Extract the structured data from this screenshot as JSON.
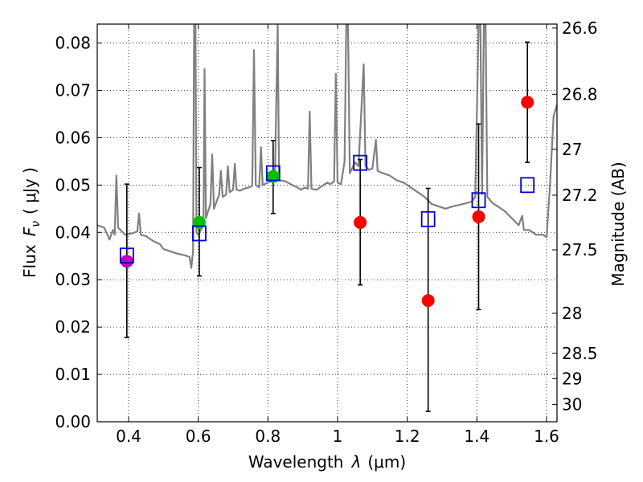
{
  "chart_data": {
    "type": "scatter",
    "xlabel_prefix": "Wavelength",
    "xlabel_symbol": "λ",
    "xlabel_unit": "(μm)",
    "ylabel_prefix": "Flux",
    "ylabel_symbol": "F",
    "ylabel_subscript": "ν",
    "ylabel_unit": "( μJy )",
    "y2label": "Magnitude (AB)",
    "xlim": [
      0.31,
      1.63
    ],
    "ylim": [
      0.0,
      0.084
    ],
    "grid": true,
    "xticks": [
      {
        "value": 0.4,
        "label": "0.4"
      },
      {
        "value": 0.6,
        "label": "0.6"
      },
      {
        "value": 0.8,
        "label": "0.8"
      },
      {
        "value": 1.0,
        "label": "1"
      },
      {
        "value": 1.2,
        "label": "1.2"
      },
      {
        "value": 1.4,
        "label": "1.4"
      },
      {
        "value": 1.6,
        "label": "1.6"
      }
    ],
    "yticks": [
      {
        "value": 0.0,
        "label": "0.00"
      },
      {
        "value": 0.01,
        "label": "0.01"
      },
      {
        "value": 0.02,
        "label": "0.02"
      },
      {
        "value": 0.03,
        "label": "0.03"
      },
      {
        "value": 0.04,
        "label": "0.04"
      },
      {
        "value": 0.05,
        "label": "0.05"
      },
      {
        "value": 0.06,
        "label": "0.06"
      },
      {
        "value": 0.07,
        "label": "0.07"
      },
      {
        "value": 0.08,
        "label": "0.08"
      }
    ],
    "y2ticks": [
      {
        "mag": 26.6,
        "label": "26.6"
      },
      {
        "mag": 26.8,
        "label": "26.8"
      },
      {
        "mag": 27.0,
        "label": "27"
      },
      {
        "mag": 27.2,
        "label": "27.2"
      },
      {
        "mag": 27.5,
        "label": "27.5"
      },
      {
        "mag": 28.0,
        "label": "28"
      },
      {
        "mag": 28.5,
        "label": "28.5"
      },
      {
        "mag": 29.0,
        "label": "29"
      },
      {
        "mag": 30.0,
        "label": "30"
      }
    ],
    "observed_points": [
      {
        "x": 0.395,
        "y": 0.0339,
        "yerr_low": 0.0178,
        "yerr_high": 0.0502,
        "color": "#bf00bf"
      },
      {
        "x": 0.603,
        "y": 0.0421,
        "yerr_low": 0.0308,
        "yerr_high": 0.0537,
        "color": "#00bf00"
      },
      {
        "x": 0.815,
        "y": 0.0518,
        "yerr_low": 0.044,
        "yerr_high": 0.0594,
        "color": "#00bf00"
      },
      {
        "x": 1.065,
        "y": 0.0421,
        "yerr_low": 0.0289,
        "yerr_high": 0.0554,
        "color": "#ff0000"
      },
      {
        "x": 1.26,
        "y": 0.0256,
        "yerr_low": 0.0022,
        "yerr_high": 0.0493,
        "color": "#ff0000"
      },
      {
        "x": 1.405,
        "y": 0.0433,
        "yerr_low": 0.0237,
        "yerr_high": 0.0629,
        "color": "#ff0000"
      },
      {
        "x": 1.545,
        "y": 0.0675,
        "yerr_low": 0.0548,
        "yerr_high": 0.0802,
        "color": "#ff0000"
      }
    ],
    "model_points": [
      {
        "x": 0.395,
        "y": 0.0351
      },
      {
        "x": 0.603,
        "y": 0.0398
      },
      {
        "x": 0.815,
        "y": 0.0525
      },
      {
        "x": 1.065,
        "y": 0.0547
      },
      {
        "x": 1.26,
        "y": 0.0428
      },
      {
        "x": 1.405,
        "y": 0.0468
      },
      {
        "x": 1.545,
        "y": 0.05
      }
    ],
    "sed_spectrum": [
      [
        0.31,
        0.0415
      ],
      [
        0.33,
        0.041
      ],
      [
        0.345,
        0.0385
      ],
      [
        0.355,
        0.0405
      ],
      [
        0.36,
        0.0395
      ],
      [
        0.365,
        0.052
      ],
      [
        0.37,
        0.041
      ],
      [
        0.39,
        0.0395
      ],
      [
        0.41,
        0.0398
      ],
      [
        0.425,
        0.0402
      ],
      [
        0.43,
        0.044
      ],
      [
        0.435,
        0.0395
      ],
      [
        0.45,
        0.0392
      ],
      [
        0.47,
        0.0382
      ],
      [
        0.49,
        0.0375
      ],
      [
        0.5,
        0.0365
      ],
      [
        0.52,
        0.036
      ],
      [
        0.54,
        0.0355
      ],
      [
        0.56,
        0.0352
      ],
      [
        0.575,
        0.0348
      ],
      [
        0.58,
        0.0325
      ],
      [
        0.585,
        0.036
      ],
      [
        0.588,
        0.084
      ],
      [
        0.592,
        0.084
      ],
      [
        0.595,
        0.04
      ],
      [
        0.6,
        0.0395
      ],
      [
        0.615,
        0.0415
      ],
      [
        0.618,
        0.0745
      ],
      [
        0.622,
        0.043
      ],
      [
        0.635,
        0.046
      ],
      [
        0.64,
        0.0565
      ],
      [
        0.645,
        0.045
      ],
      [
        0.66,
        0.048
      ],
      [
        0.665,
        0.053
      ],
      [
        0.67,
        0.0475
      ],
      [
        0.68,
        0.048
      ],
      [
        0.685,
        0.054
      ],
      [
        0.69,
        0.0485
      ],
      [
        0.7,
        0.049
      ],
      [
        0.705,
        0.0545
      ],
      [
        0.71,
        0.049
      ],
      [
        0.72,
        0.0488
      ],
      [
        0.73,
        0.0492
      ],
      [
        0.745,
        0.0495
      ],
      [
        0.755,
        0.0498
      ],
      [
        0.76,
        0.0785
      ],
      [
        0.765,
        0.05
      ],
      [
        0.775,
        0.0495
      ],
      [
        0.78,
        0.058
      ],
      [
        0.785,
        0.05
      ],
      [
        0.8,
        0.0505
      ],
      [
        0.81,
        0.051
      ],
      [
        0.815,
        0.0525
      ],
      [
        0.82,
        0.051
      ],
      [
        0.828,
        0.084
      ],
      [
        0.832,
        0.051
      ],
      [
        0.85,
        0.0508
      ],
      [
        0.865,
        0.0502
      ],
      [
        0.875,
        0.0498
      ],
      [
        0.885,
        0.0495
      ],
      [
        0.895,
        0.049
      ],
      [
        0.905,
        0.0495
      ],
      [
        0.915,
        0.0492
      ],
      [
        0.92,
        0.0655
      ],
      [
        0.925,
        0.0492
      ],
      [
        0.94,
        0.049
      ],
      [
        0.955,
        0.0498
      ],
      [
        0.97,
        0.0505
      ],
      [
        0.98,
        0.0502
      ],
      [
        0.99,
        0.0508
      ],
      [
        0.995,
        0.0735
      ],
      [
        1.0,
        0.0505
      ],
      [
        1.01,
        0.0502
      ],
      [
        1.02,
        0.055
      ],
      [
        1.025,
        0.084
      ],
      [
        1.03,
        0.084
      ],
      [
        1.035,
        0.0525
      ],
      [
        1.05,
        0.0548
      ],
      [
        1.06,
        0.054
      ],
      [
        1.075,
        0.0755
      ],
      [
        1.08,
        0.054
      ],
      [
        1.09,
        0.0532
      ],
      [
        1.1,
        0.0535
      ],
      [
        1.11,
        0.0595
      ],
      [
        1.115,
        0.053
      ],
      [
        1.13,
        0.0525
      ],
      [
        1.15,
        0.052
      ],
      [
        1.17,
        0.051
      ],
      [
        1.19,
        0.0505
      ],
      [
        1.21,
        0.0495
      ],
      [
        1.23,
        0.0485
      ],
      [
        1.25,
        0.0475
      ],
      [
        1.27,
        0.046
      ],
      [
        1.29,
        0.0455
      ],
      [
        1.31,
        0.045
      ],
      [
        1.33,
        0.0455
      ],
      [
        1.35,
        0.0458
      ],
      [
        1.37,
        0.0462
      ],
      [
        1.385,
        0.0465
      ],
      [
        1.395,
        0.0475
      ],
      [
        1.405,
        0.084
      ],
      [
        1.41,
        0.084
      ],
      [
        1.415,
        0.048
      ],
      [
        1.42,
        0.084
      ],
      [
        1.425,
        0.084
      ],
      [
        1.43,
        0.0475
      ],
      [
        1.445,
        0.0462
      ],
      [
        1.46,
        0.0455
      ],
      [
        1.48,
        0.0445
      ],
      [
        1.5,
        0.043
      ],
      [
        1.52,
        0.0415
      ],
      [
        1.53,
        0.0435
      ],
      [
        1.535,
        0.0405
      ],
      [
        1.55,
        0.0405
      ],
      [
        1.57,
        0.0395
      ],
      [
        1.59,
        0.0395
      ],
      [
        1.6,
        0.039
      ],
      [
        1.61,
        0.05
      ],
      [
        1.62,
        0.0645
      ],
      [
        1.63,
        0.067
      ]
    ],
    "colors": {
      "spectrum": "#808080",
      "model_marker": "#0000cc",
      "errorbar": "#000000",
      "grid": "#000000"
    }
  }
}
